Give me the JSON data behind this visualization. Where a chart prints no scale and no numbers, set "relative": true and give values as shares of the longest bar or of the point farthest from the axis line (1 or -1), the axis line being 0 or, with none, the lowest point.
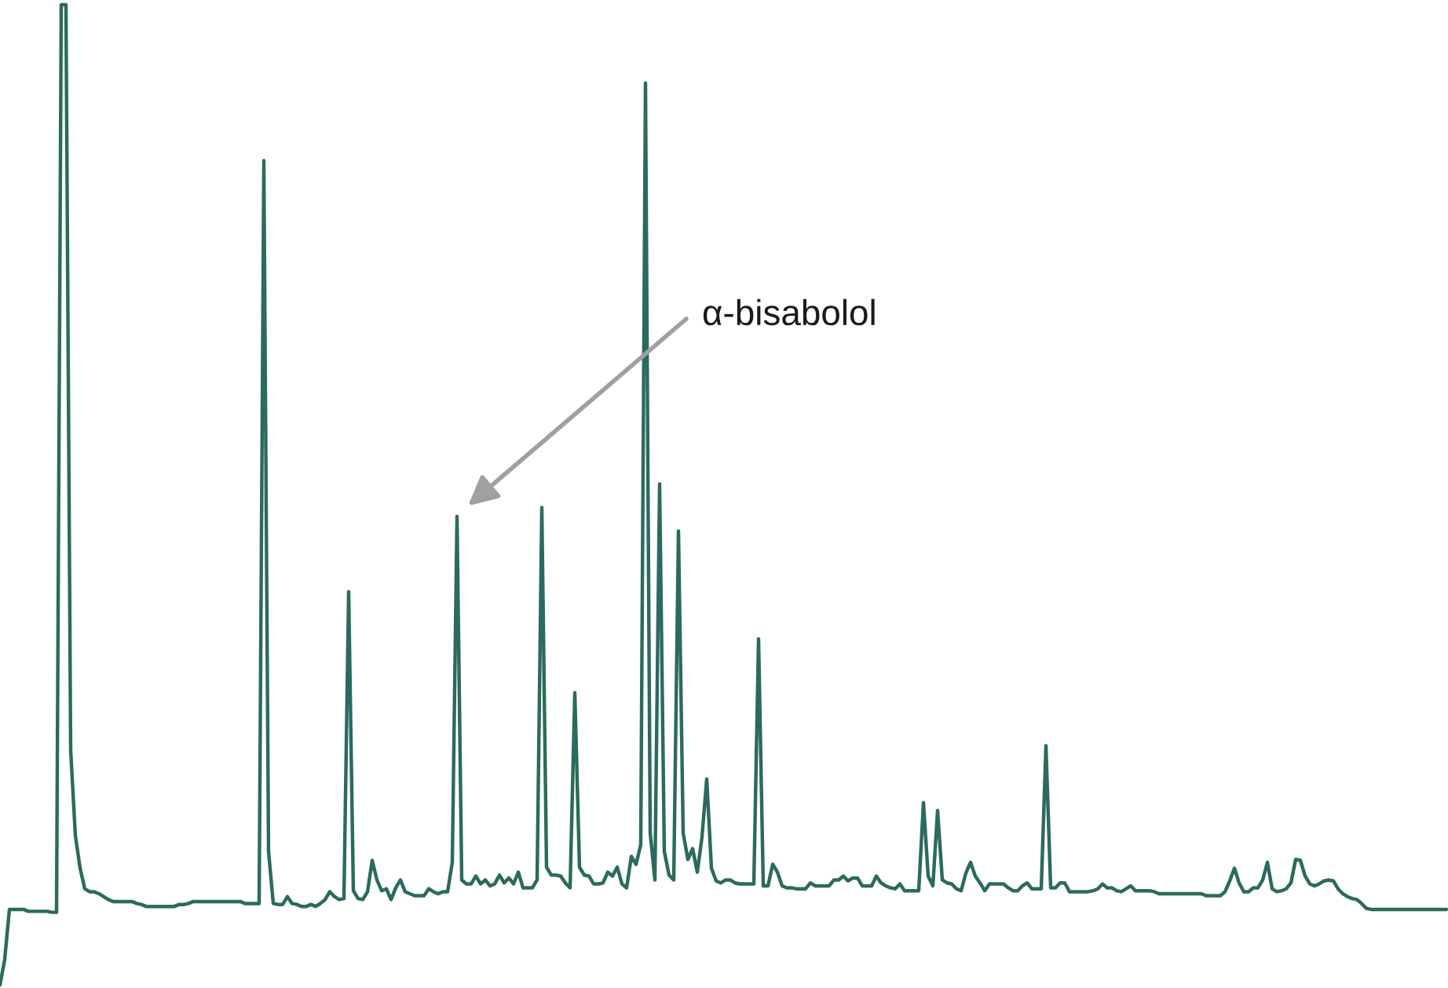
{
  "chart_data": {
    "type": "line",
    "relative": true,
    "color": "#2b6b5e",
    "annotations": [
      "α-bisabolol"
    ],
    "categories": [
      null,
      null,
      null,
      null,
      null,
      null,
      null,
      null,
      null,
      null,
      null,
      null,
      null,
      null,
      null,
      null,
      null,
      null,
      null,
      null,
      null,
      null,
      null,
      null,
      null,
      null,
      null,
      null,
      null,
      null,
      null,
      null,
      null,
      null,
      null,
      null,
      null,
      null,
      null,
      null,
      null,
      null,
      null,
      null,
      null,
      null,
      null,
      null,
      null,
      null,
      null,
      null,
      null,
      null,
      null,
      null,
      null,
      null,
      null,
      null,
      null,
      null,
      null,
      null,
      null,
      null,
      null,
      null,
      null,
      null,
      null,
      null,
      null,
      null,
      null,
      null,
      null,
      null,
      null,
      null,
      null,
      null,
      null,
      null,
      null,
      null,
      null,
      null,
      null,
      null,
      null,
      null,
      null,
      null,
      null,
      null,
      null,
      null,
      null,
      null,
      null,
      null,
      null,
      null,
      null,
      null,
      null,
      null,
      null,
      null,
      null,
      null,
      null,
      null,
      null,
      null,
      null,
      null,
      null,
      null,
      null,
      null,
      null,
      null,
      null,
      null,
      null,
      null,
      null,
      null,
      null,
      null,
      null,
      null,
      null,
      null,
      null,
      null,
      null,
      null,
      null,
      null,
      null,
      null,
      null,
      null,
      null,
      null,
      null,
      null,
      null,
      null,
      null,
      null,
      null,
      null,
      null,
      null,
      null,
      null,
      null,
      null,
      null,
      null,
      null,
      null,
      null,
      null,
      null,
      null,
      null,
      null,
      null,
      null,
      null,
      null,
      null,
      null,
      null,
      null,
      null,
      null,
      null,
      null,
      null,
      null,
      null,
      null,
      null,
      null,
      null,
      null,
      null,
      null,
      null,
      null,
      null,
      null,
      null,
      null,
      null,
      null,
      null,
      null,
      null,
      null,
      null,
      null,
      null,
      null,
      null,
      null,
      null,
      null,
      null,
      null,
      null,
      null,
      null,
      null,
      null,
      null,
      null,
      null,
      null,
      null,
      null,
      null,
      null,
      null,
      null,
      null,
      null,
      null,
      null,
      null,
      null,
      null,
      null,
      null,
      null,
      null,
      null,
      null,
      null,
      null,
      null,
      null,
      null,
      null,
      null,
      null,
      null,
      null,
      null,
      null,
      null,
      null,
      null,
      null,
      null,
      null,
      null,
      null,
      null,
      null,
      null,
      null,
      null,
      null,
      null,
      null,
      null,
      null,
      null,
      null,
      null,
      null,
      null,
      null,
      null,
      null,
      null,
      null,
      null,
      null,
      null,
      null,
      null,
      null,
      null,
      null,
      null,
      null,
      null,
      null,
      null,
      null,
      null,
      null,
      null,
      null,
      null,
      null,
      null,
      null,
      null,
      null
    ],
    "values": [
      0,
      0.026,
      0.077,
      0.077,
      0.077,
      0.077,
      0.075,
      0.075,
      0.075,
      0.075,
      0.075,
      0.074,
      0.074,
      1.0,
      1.0,
      0.239,
      0.152,
      0.119,
      0.098,
      0.095,
      0.095,
      0.093,
      0.09,
      0.087,
      0.085,
      0.085,
      0.085,
      0.085,
      0.085,
      0.083,
      0.082,
      0.08,
      0.08,
      0.08,
      0.08,
      0.08,
      0.08,
      0.08,
      0.082,
      0.082,
      0.083,
      0.085,
      0.085,
      0.085,
      0.085,
      0.085,
      0.085,
      0.085,
      0.085,
      0.085,
      0.085,
      0.085,
      0.083,
      0.083,
      0.083,
      0.083,
      0.841,
      0.136,
      0.083,
      0.082,
      0.082,
      0.09,
      0.083,
      0.082,
      0.08,
      0.08,
      0.082,
      0.08,
      0.083,
      0.087,
      0.095,
      0.09,
      0.087,
      0.088,
      0.401,
      0.096,
      0.088,
      0.087,
      0.095,
      0.127,
      0.107,
      0.096,
      0.098,
      0.087,
      0.099,
      0.107,
      0.095,
      0.093,
      0.091,
      0.091,
      0.091,
      0.098,
      0.095,
      0.093,
      0.095,
      0.095,
      0.125,
      0.478,
      0.107,
      0.103,
      0.103,
      0.111,
      0.103,
      0.107,
      0.101,
      0.103,
      0.112,
      0.104,
      0.109,
      0.103,
      0.115,
      0.099,
      0.099,
      0.099,
      0.107,
      0.487,
      0.12,
      0.112,
      0.112,
      0.111,
      0.104,
      0.099,
      0.298,
      0.12,
      0.112,
      0.111,
      0.103,
      0.103,
      0.104,
      0.115,
      0.111,
      0.12,
      0.103,
      0.099,
      0.131,
      0.123,
      0.143,
      0.92,
      0.155,
      0.107,
      0.511,
      0.136,
      0.112,
      0.107,
      0.463,
      0.155,
      0.128,
      0.139,
      0.115,
      0.151,
      0.21,
      0.119,
      0.106,
      0.104,
      0.107,
      0.107,
      0.104,
      0.103,
      0.103,
      0.103,
      0.103,
      0.353,
      0.101,
      0.101,
      0.123,
      0.115,
      0.101,
      0.099,
      0.099,
      0.098,
      0.098,
      0.098,
      0.104,
      0.101,
      0.101,
      0.101,
      0.101,
      0.107,
      0.107,
      0.111,
      0.106,
      0.109,
      0.109,
      0.101,
      0.101,
      0.101,
      0.111,
      0.104,
      0.101,
      0.099,
      0.098,
      0.103,
      0.096,
      0.096,
      0.096,
      0.096,
      0.186,
      0.111,
      0.101,
      0.178,
      0.107,
      0.104,
      0.103,
      0.098,
      0.096,
      0.114,
      0.125,
      0.111,
      0.104,
      0.096,
      0.103,
      0.103,
      0.103,
      0.103,
      0.099,
      0.096,
      0.096,
      0.101,
      0.104,
      0.098,
      0.098,
      0.098,
      0.244,
      0.099,
      0.099,
      0.104,
      0.104,
      0.095,
      0.095,
      0.095,
      0.095,
      0.095,
      0.096,
      0.098,
      0.103,
      0.099,
      0.099,
      0.096,
      0.095,
      0.098,
      0.101,
      0.096,
      0.096,
      0.096,
      0.096,
      0.095,
      0.093,
      0.093,
      0.093,
      0.093,
      0.093,
      0.093,
      0.093,
      0.093,
      0.093,
      0.093,
      0.091,
      0.091,
      0.091,
      0.091,
      0.095,
      0.106,
      0.119,
      0.104,
      0.095,
      0.095,
      0.099,
      0.099,
      0.107,
      0.125,
      0.098,
      0.095,
      0.096,
      0.098,
      0.104,
      0.128,
      0.127,
      0.111,
      0.103,
      0.101,
      0.103,
      0.106,
      0.107,
      0.106,
      0.098,
      0.093,
      0.09,
      0.088,
      0.087,
      0.083,
      0.078,
      0.077,
      0.077,
      0.077,
      0.077,
      0.077,
      0.077,
      0.077,
      0.077,
      0.077,
      0.077,
      0.077,
      0.077,
      0.077,
      0.077,
      0.077,
      0.077,
      0.077
    ]
  }
}
